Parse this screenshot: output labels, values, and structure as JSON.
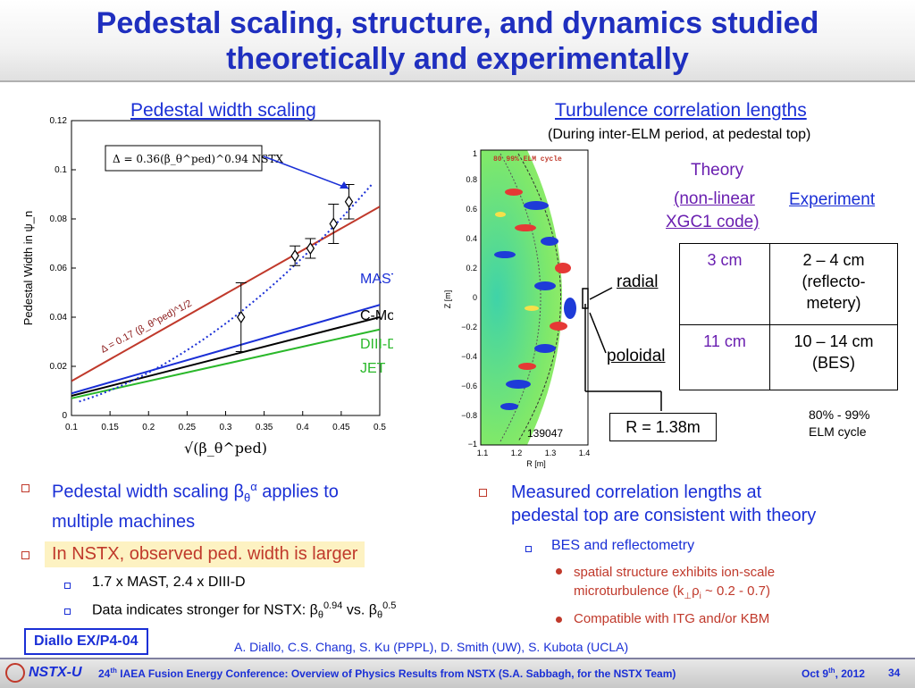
{
  "title": {
    "line1": "Pedestal scaling, structure, and dynamics studied",
    "line2": "theoretically and experimentally"
  },
  "left_panel": {
    "heading": "Pedestal width scaling",
    "chart_data": {
      "type": "scatter",
      "xlabel": "√(β_θ^ped)",
      "ylabel": "Pedestal Width in ψ_n",
      "xlim": [
        0.1,
        0.5
      ],
      "ylim": [
        0,
        0.12
      ],
      "x_ticks": [
        "0.1",
        "0.15",
        "0.2",
        "0.25",
        "0.3",
        "0.35",
        "0.4",
        "0.45",
        "0.5"
      ],
      "y_ticks": [
        "0",
        "0.02",
        "0.04",
        "0.06",
        "0.08",
        "0.1",
        "0.12"
      ],
      "points": [
        {
          "x": 0.32,
          "y": 0.04,
          "err": 0.014
        },
        {
          "x": 0.39,
          "y": 0.065,
          "err": 0.004
        },
        {
          "x": 0.41,
          "y": 0.068,
          "err": 0.004
        },
        {
          "x": 0.44,
          "y": 0.078,
          "err": 0.008
        },
        {
          "x": 0.46,
          "y": 0.087,
          "err": 0.007
        }
      ],
      "lines": [
        {
          "name": "MAST",
          "color": "#1a2fd6",
          "x": [
            0.1,
            0.5
          ],
          "y": [
            0.009,
            0.045
          ]
        },
        {
          "name": "C-Mod",
          "color": "#000000",
          "x": [
            0.1,
            0.5
          ],
          "y": [
            0.008,
            0.04
          ]
        },
        {
          "name": "DIII-D",
          "color": "#2ab82a",
          "x": [
            0.1,
            0.5
          ],
          "y": [
            0.007,
            0.035
          ]
        },
        {
          "name": "NSTX fit",
          "color": "#c0392b",
          "x": [
            0.1,
            0.5
          ],
          "y": [
            0.014,
            0.085
          ]
        }
      ],
      "curve": {
        "color": "#1a2fd6",
        "a": 0.36,
        "b": 0.94
      },
      "legend_labels": [
        {
          "text": "MAST",
          "color": "#1a2fd6"
        },
        {
          "text": "C-Mod",
          "color": "#000000"
        },
        {
          "text": "DIII-D",
          "color": "#2ab82a"
        },
        {
          "text": "JET",
          "color": "#2ab82a"
        }
      ],
      "box_label": "Δ = 0.36(β_θ^ped)^0.94   NSTX",
      "line_annotation": "Δ = 0.17 (β_θ^ped)^1/2"
    }
  },
  "right_panel": {
    "heading": "Turbulence correlation lengths",
    "subheading": "(During inter-ELM period, at pedestal top)",
    "image": {
      "caption": "80  99% ELM cycle",
      "shot": "139047",
      "xlabel": "R [m]",
      "ylabel": "Z [m]",
      "x_ticks": [
        "1.1",
        "1.2",
        "1.3",
        "1.4"
      ],
      "y_ticks": [
        "1",
        "0.8",
        "0.6",
        "0.4",
        "0.2",
        "0",
        "−0.2",
        "−0.4",
        "−0.6",
        "−0.8",
        "−1"
      ]
    },
    "r_box": "R = 1.38m",
    "theory_label": "Theory",
    "theory_sub1": "(non-linear",
    "theory_sub2": "XGC1 code)",
    "experiment_label": "Experiment",
    "radial_label": "radial",
    "poloidal_label": "poloidal",
    "table": {
      "radial_theory": "3 cm",
      "radial_exp1": "2 – 4 cm",
      "radial_exp2": "(reflecto-",
      "radial_exp3": "metery)",
      "poloidal_theory": "11 cm",
      "poloidal_exp1": "10 – 14 cm",
      "poloidal_exp2": "(BES)"
    },
    "elm_note1": "80% - 99%",
    "elm_note2": "ELM cycle"
  },
  "bullets_left": {
    "b1a": "Pedestal width scaling β",
    "b1b": "θ",
    "b1c": "α",
    "b1d": " applies to",
    "b1e": "multiple machines",
    "b2": "In NSTX, observed ped. width is larger",
    "s1": "1.7 x MAST, 2.4 x DIII-D",
    "s2a": "Data indicates stronger for NSTX: β",
    "s2b": "θ",
    "s2c": "0.94",
    "s2d": " vs. β",
    "s2e": "θ",
    "s2f": "0.5"
  },
  "bullets_right": {
    "b1a": "Measured correlation lengths at",
    "b1b": "pedestal top are consistent with theory",
    "s1": "BES and reflectometry",
    "ss1a": "spatial structure exhibits ion-scale",
    "ss1b": "microturbulence (k",
    "ss1c": "⊥",
    "ss1d": "ρ",
    "ss1e": "i",
    "ss1f": " ~ 0.2 - 0.7)",
    "ss2": "Compatible with ITG and/or KBM"
  },
  "paper_id": "Diallo EX/P4-04",
  "authors": "A. Diallo, C.S. Chang, S. Ku (PPPL), D. Smith (UW), S. Kubota (UCLA)",
  "footer": {
    "logo": "NSTX-U",
    "conf_a": "24",
    "conf_b": "th",
    "conf_c": " IAEA Fusion Energy Conference: Overview of Physics Results from NSTX (S.A. Sabbagh, for the NSTX Team)",
    "date_a": "Oct 9",
    "date_b": "th",
    "date_c": ", 2012",
    "page": "34"
  }
}
